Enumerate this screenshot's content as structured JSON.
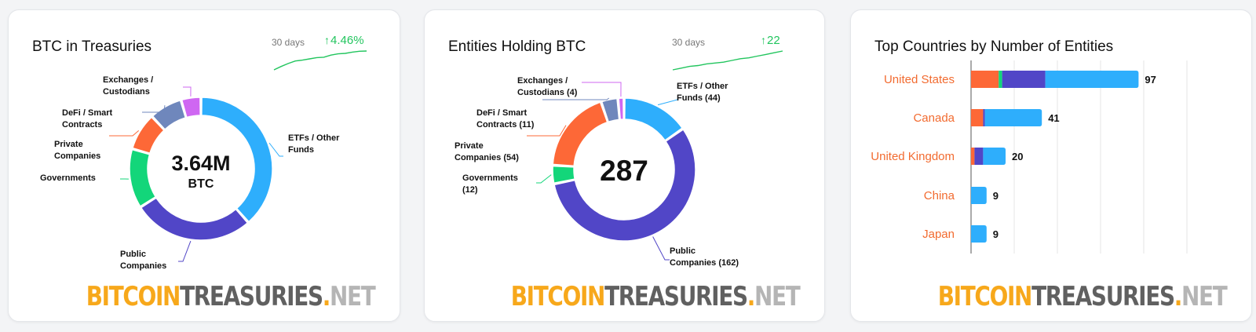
{
  "colors": {
    "etf": "#2eaefc",
    "public": "#5146c7",
    "governments": "#13d67a",
    "private": "#fd6837",
    "defi": "#6f87bc",
    "exchanges": "#cf67f2",
    "up": "#22c55e",
    "country_label": "#f26b30"
  },
  "watermark": {
    "part1": "BITCOIN",
    "part2": "TREASURIES",
    "dot": ".",
    "part3": "NET"
  },
  "card1": {
    "title": "BTC in Treasuries",
    "period": "30 days",
    "change": "4.46%",
    "sparkline": [
      0,
      0.8,
      1.5,
      2.1,
      2.3,
      2.6,
      2.9,
      3.0,
      3.5,
      3.8,
      3.9,
      4.2,
      4.4,
      4.46
    ],
    "center_value": "3.64M",
    "center_unit": "BTC",
    "chart_data": {
      "type": "pie",
      "donut": true,
      "title": "BTC in Treasuries",
      "segments": [
        {
          "label": [
            "ETFs / Other",
            "Funds"
          ],
          "value": 38.5,
          "color_key": "etf"
        },
        {
          "label": [
            "Public",
            "Companies"
          ],
          "value": 27.5,
          "color_key": "public"
        },
        {
          "label": [
            "Governments"
          ],
          "value": 13.5,
          "color_key": "governments"
        },
        {
          "label": [
            "Private",
            "Companies"
          ],
          "value": 8.5,
          "color_key": "private"
        },
        {
          "label": [
            "DeFi / Smart",
            "Contracts"
          ],
          "value": 7.5,
          "color_key": "defi"
        },
        {
          "label": [
            "Exchanges /",
            "Custodians"
          ],
          "value": 4.5,
          "color_key": "exchanges"
        }
      ]
    }
  },
  "card2": {
    "title": "Entities Holding BTC",
    "period": "30 days",
    "change": "22",
    "sparkline": [
      0,
      2,
      4,
      5,
      7,
      8,
      9,
      11,
      13,
      14,
      16,
      18,
      20,
      22
    ],
    "center_value": "287",
    "chart_data": {
      "type": "pie",
      "donut": true,
      "title": "Entities Holding BTC",
      "segments": [
        {
          "label": [
            "ETFs / Other",
            "Funds (44)"
          ],
          "value": 44,
          "color_key": "etf"
        },
        {
          "label": [
            "Public",
            "Companies (162)"
          ],
          "value": 162,
          "color_key": "public"
        },
        {
          "label": [
            "Governments",
            "(12)"
          ],
          "value": 12,
          "color_key": "governments"
        },
        {
          "label": [
            "Private",
            "Companies (54)"
          ],
          "value": 54,
          "color_key": "private"
        },
        {
          "label": [
            "DeFi / Smart",
            "Contracts (11)"
          ],
          "value": 11,
          "color_key": "defi"
        },
        {
          "label": [
            "Exchanges /",
            "Custodians (4)"
          ],
          "value": 4,
          "color_key": "exchanges"
        }
      ]
    }
  },
  "card3": {
    "title": "Top Countries by Number of Entities",
    "chart_data": {
      "type": "bar",
      "orientation": "horizontal",
      "stacked": true,
      "title": "Top Countries by Number of Entities",
      "categories": [
        "United States",
        "Canada",
        "United Kingdom",
        "China",
        "Japan"
      ],
      "totals": [
        97,
        41,
        20,
        9,
        9
      ],
      "series": [
        {
          "color_key": "private",
          "values": [
            16,
            7,
            2,
            0,
            0
          ]
        },
        {
          "color_key": "governments",
          "values": [
            2,
            0,
            0,
            0,
            0
          ]
        },
        {
          "color_key": "public",
          "values": [
            25,
            1,
            5,
            0,
            0
          ]
        },
        {
          "color_key": "etf",
          "values": [
            54,
            33,
            13,
            9,
            9
          ]
        }
      ],
      "xlim": [
        0,
        125
      ],
      "grid": true
    }
  }
}
